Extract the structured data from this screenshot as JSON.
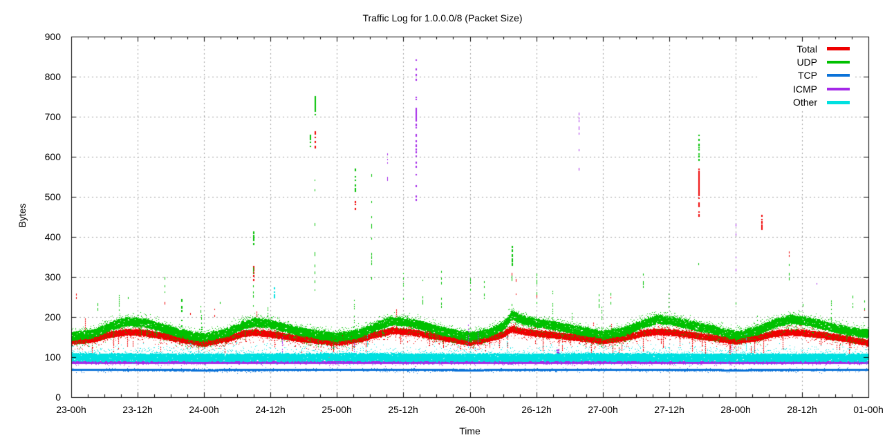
{
  "chart_data": {
    "type": "scatter",
    "title": "Traffic Log for 1.0.0.0/8 (Packet Size)",
    "xlabel": "Time",
    "ylabel": "Bytes",
    "ylim": [
      0,
      900
    ],
    "y_ticks": [
      0,
      100,
      200,
      300,
      400,
      500,
      600,
      700,
      800,
      900
    ],
    "x_tick_labels": [
      "23-00h",
      "23-12h",
      "24-00h",
      "24-12h",
      "25-00h",
      "25-12h",
      "26-00h",
      "26-12h",
      "27-00h",
      "27-12h",
      "28-00h",
      "28-12h",
      "01-00h"
    ],
    "x_axis": {
      "span_hours": 144,
      "major_step_hours": 12,
      "minor_step_hours": 3
    },
    "grid": true,
    "grid_color": "#9e9e9e",
    "legend_position": "top-right-inside",
    "series": [
      {
        "name": "Total",
        "key": "total",
        "color": "#ef0000",
        "legend_lw": 5,
        "band": {
          "t": [
            0,
            4,
            7,
            10,
            13,
            16,
            19,
            22,
            24,
            28,
            31,
            33,
            36,
            38,
            41,
            45,
            48,
            52,
            55,
            58,
            61,
            64,
            67,
            70,
            72,
            75,
            78,
            79.5,
            81,
            84,
            87,
            90,
            93,
            96,
            100,
            103,
            106,
            109,
            112,
            115,
            118,
            120,
            124,
            127,
            130,
            133,
            136,
            139,
            142,
            144
          ],
          "v": [
            140,
            146,
            158,
            164,
            162,
            155,
            147,
            140,
            136,
            146,
            160,
            163,
            158,
            154,
            148,
            141,
            138,
            146,
            158,
            167,
            164,
            157,
            150,
            142,
            137,
            146,
            158,
            172,
            166,
            160,
            156,
            152,
            147,
            142,
            150,
            160,
            165,
            162,
            156,
            151,
            145,
            141,
            150,
            160,
            163,
            160,
            155,
            149,
            142,
            136
          ]
        },
        "noise": {
          "dot": 2,
          "core_n": 10,
          "core_half": 7,
          "solid": 0,
          "tail_up": {
            "p": 0.45,
            "range": 16,
            "n": 2
          },
          "tail_down": {
            "p": 0.5,
            "range": 20,
            "n": 2
          },
          "dangle": {
            "p": 0.05,
            "min": 15,
            "max": 45
          },
          "upcol": {
            "p": 0.012,
            "max": 60
          }
        }
      },
      {
        "name": "UDP",
        "key": "udp",
        "color": "#00c000",
        "legend_lw": 4,
        "band": {
          "t": [
            0,
            4,
            7,
            10,
            13,
            16,
            19,
            22,
            24,
            28,
            31,
            33,
            36,
            38,
            41,
            45,
            48,
            52,
            55,
            58,
            61,
            64,
            67,
            70,
            72,
            75,
            78,
            79.5,
            81,
            84,
            87,
            90,
            93,
            96,
            100,
            103,
            106,
            109,
            112,
            115,
            118,
            120,
            124,
            127,
            130,
            133,
            136,
            139,
            142,
            144
          ],
          "v": [
            153,
            160,
            178,
            190,
            188,
            176,
            163,
            153,
            150,
            162,
            182,
            188,
            184,
            176,
            166,
            156,
            151,
            160,
            178,
            192,
            188,
            177,
            166,
            157,
            153,
            160,
            178,
            207,
            196,
            186,
            180,
            172,
            164,
            156,
            166,
            184,
            196,
            190,
            180,
            172,
            162,
            155,
            168,
            186,
            196,
            190,
            180,
            170,
            162,
            160
          ]
        },
        "noise": {
          "dot": 2,
          "core_n": 9,
          "core_half": 10,
          "solid": 0,
          "tail_up": {
            "p": 0.5,
            "range": 16,
            "n": 2
          },
          "tail_down": {
            "p": 0.7,
            "range": 30,
            "n": 2
          },
          "dangle": {
            "p": 0.04,
            "min": 10,
            "max": 30
          },
          "upcol": {
            "p": 0.012,
            "max": 85
          }
        }
      },
      {
        "name": "TCP",
        "key": "tcp",
        "color": "#0b72d8",
        "legend_lw": 4,
        "band": {
          "t": [
            0,
            24,
            48,
            72,
            96,
            120,
            144
          ],
          "v": [
            69,
            68,
            69,
            68,
            69,
            68,
            69
          ]
        },
        "noise": {
          "dot": 1,
          "core_n": 4,
          "core_half": 2.5,
          "solid": 3,
          "tail_up": {
            "p": 0.1,
            "range": 4,
            "n": 1
          },
          "tail_down": {
            "p": 0.12,
            "range": 7,
            "n": 1
          },
          "dangle": {
            "p": 0.0,
            "min": 0,
            "max": 0
          },
          "upcol": {
            "p": 0.0,
            "max": 0
          }
        }
      },
      {
        "name": "ICMP",
        "key": "icmp",
        "color": "#a428e8",
        "legend_lw": 4,
        "band": {
          "t": [
            0,
            144
          ],
          "v": [
            87,
            87
          ]
        },
        "noise": {
          "dot": 1,
          "core_n": 4,
          "core_half": 3.5,
          "solid": 4,
          "tail_up": {
            "p": 0.2,
            "range": 8,
            "n": 1
          },
          "tail_down": {
            "p": 0.15,
            "range": 7,
            "n": 1
          },
          "dangle": {
            "p": 0.0,
            "min": 0,
            "max": 0
          },
          "upcol": {
            "p": 0.004,
            "max": 120
          }
        }
      },
      {
        "name": "Other",
        "key": "other",
        "color": "#00e0e0",
        "legend_lw": 5,
        "band": {
          "t": [
            0,
            24,
            48,
            72,
            96,
            120,
            144
          ],
          "v": [
            101,
            100,
            101,
            100,
            101,
            100,
            100
          ]
        },
        "noise": {
          "dot": 2,
          "core_n": 11,
          "core_half": 9,
          "solid": 0,
          "tail_up": {
            "p": 0.5,
            "range": 28,
            "n": 2
          },
          "tail_down": {
            "p": 0.3,
            "range": 12,
            "n": 1
          },
          "dangle": {
            "p": 0.0,
            "min": 0,
            "max": 0
          },
          "upcol": {
            "p": 0.005,
            "max": 55
          }
        }
      }
    ],
    "spikes": [
      {
        "s": "total",
        "t": 0.9,
        "lo": 250,
        "hi": 262,
        "d": 0.6,
        "w": 1
      },
      {
        "s": "total",
        "t": 16.9,
        "lo": 224,
        "hi": 250,
        "d": 0.7,
        "w": 1
      },
      {
        "s": "total",
        "t": 21.5,
        "lo": 195,
        "hi": 230,
        "d": 0.5,
        "w": 1
      },
      {
        "s": "total",
        "t": 25.9,
        "lo": 205,
        "hi": 240,
        "d": 0.6,
        "w": 1
      },
      {
        "s": "total",
        "t": 32.8,
        "lo": 295,
        "hi": 340,
        "d": 0.7,
        "w": 2
      },
      {
        "s": "total",
        "t": 44.0,
        "lo": 628,
        "hi": 668,
        "d": 0.8,
        "w": 2
      },
      {
        "s": "total",
        "t": 51.2,
        "lo": 473,
        "hi": 512,
        "d": 0.8,
        "w": 2
      },
      {
        "s": "total",
        "t": 79.6,
        "lo": 298,
        "hi": 312,
        "d": 0.6,
        "w": 1
      },
      {
        "s": "total",
        "t": 80.3,
        "lo": 258,
        "hi": 300,
        "d": 0.5,
        "w": 1
      },
      {
        "s": "total",
        "t": 84.0,
        "lo": 228,
        "hi": 262,
        "d": 0.5,
        "w": 1
      },
      {
        "s": "total",
        "t": 97.4,
        "lo": 228,
        "hi": 256,
        "d": 0.5,
        "w": 1
      },
      {
        "s": "total",
        "t": 113.3,
        "lo": 448,
        "hi": 575,
        "d": 0.55,
        "w": 2,
        "solid": [
          505,
          557
        ]
      },
      {
        "s": "total",
        "t": 124.6,
        "lo": 425,
        "hi": 465,
        "d": 0.7,
        "w": 2
      },
      {
        "s": "total",
        "t": 129.6,
        "lo": 338,
        "hi": 366,
        "d": 0.5,
        "w": 1
      },
      {
        "s": "total",
        "t": 143.3,
        "lo": 222,
        "hi": 250,
        "d": 0.5,
        "w": 1
      },
      {
        "s": "udp",
        "t": 4.75,
        "lo": 222,
        "hi": 240,
        "d": 0.5,
        "w": 1
      },
      {
        "s": "udp",
        "t": 10.2,
        "lo": 240,
        "hi": 265,
        "d": 0.5,
        "w": 1
      },
      {
        "s": "udp",
        "t": 16.9,
        "lo": 253,
        "hi": 302,
        "d": 0.6,
        "w": 1
      },
      {
        "s": "udp",
        "t": 19.9,
        "lo": 180,
        "hi": 246,
        "d": 0.6,
        "w": 2
      },
      {
        "s": "udp",
        "t": 23.4,
        "lo": 217,
        "hi": 234,
        "d": 0.6,
        "w": 1
      },
      {
        "s": "udp",
        "t": 26.8,
        "lo": 228,
        "hi": 262,
        "d": 0.5,
        "w": 1
      },
      {
        "s": "udp",
        "t": 32.8,
        "lo": 230,
        "hi": 330,
        "d": 0.4,
        "w": 1
      },
      {
        "s": "udp",
        "t": 32.8,
        "lo": 385,
        "hi": 425,
        "d": 0.8,
        "w": 2
      },
      {
        "s": "udp",
        "t": 43.1,
        "lo": 618,
        "hi": 660,
        "d": 0.7,
        "w": 2
      },
      {
        "s": "udp",
        "t": 44.0,
        "lo": 250,
        "hi": 560,
        "d": 0.25,
        "w": 1
      },
      {
        "s": "udp",
        "t": 44.0,
        "lo": 700,
        "hi": 755,
        "d": 0.8,
        "w": 2,
        "solid": [
          715,
          750
        ]
      },
      {
        "s": "udp",
        "t": 51.2,
        "lo": 518,
        "hi": 580,
        "d": 0.75,
        "w": 2
      },
      {
        "s": "udp",
        "t": 54.2,
        "lo": 300,
        "hi": 578,
        "d": 0.3,
        "w": 1
      },
      {
        "s": "udp",
        "t": 60.0,
        "lo": 248,
        "hi": 320,
        "d": 0.5,
        "w": 1
      },
      {
        "s": "udp",
        "t": 63.4,
        "lo": 238,
        "hi": 300,
        "d": 0.45,
        "w": 1
      },
      {
        "s": "udp",
        "t": 66.8,
        "lo": 228,
        "hi": 330,
        "d": 0.4,
        "w": 1
      },
      {
        "s": "udp",
        "t": 72.1,
        "lo": 230,
        "hi": 300,
        "d": 0.4,
        "w": 1
      },
      {
        "s": "udp",
        "t": 74.6,
        "lo": 248,
        "hi": 310,
        "d": 0.45,
        "w": 1
      },
      {
        "s": "udp",
        "t": 79.6,
        "lo": 334,
        "hi": 378,
        "d": 0.8,
        "w": 2
      },
      {
        "s": "udp",
        "t": 79.6,
        "lo": 215,
        "hi": 320,
        "d": 0.3,
        "w": 1
      },
      {
        "s": "udp",
        "t": 84.0,
        "lo": 238,
        "hi": 310,
        "d": 0.45,
        "w": 1
      },
      {
        "s": "udp",
        "t": 95.3,
        "lo": 228,
        "hi": 262,
        "d": 0.5,
        "w": 1
      },
      {
        "s": "udp",
        "t": 97.4,
        "lo": 238,
        "hi": 266,
        "d": 0.5,
        "w": 1
      },
      {
        "s": "udp",
        "t": 103.3,
        "lo": 278,
        "hi": 312,
        "d": 0.5,
        "w": 1
      },
      {
        "s": "udp",
        "t": 107.9,
        "lo": 228,
        "hi": 262,
        "d": 0.5,
        "w": 1
      },
      {
        "s": "udp",
        "t": 113.3,
        "lo": 595,
        "hi": 662,
        "d": 0.8,
        "w": 2
      },
      {
        "s": "udp",
        "t": 113.3,
        "lo": 335,
        "hi": 345,
        "d": 0.5,
        "w": 1
      },
      {
        "s": "udp",
        "t": 116.8,
        "lo": 228,
        "hi": 262,
        "d": 0.4,
        "w": 1
      },
      {
        "s": "udp",
        "t": 120.0,
        "lo": 228,
        "hi": 282,
        "d": 0.4,
        "w": 1
      },
      {
        "s": "udp",
        "t": 129.6,
        "lo": 298,
        "hi": 338,
        "d": 0.5,
        "w": 1
      },
      {
        "s": "udp",
        "t": 132.1,
        "lo": 228,
        "hi": 266,
        "d": 0.4,
        "w": 1
      },
      {
        "s": "udp",
        "t": 141.1,
        "lo": 228,
        "hi": 262,
        "d": 0.4,
        "w": 1
      },
      {
        "s": "udp",
        "t": 143.3,
        "lo": 222,
        "hi": 262,
        "d": 0.5,
        "w": 1
      },
      {
        "s": "icmp",
        "t": 57.1,
        "lo": 528,
        "hi": 610,
        "d": 0.35,
        "w": 1
      },
      {
        "s": "icmp",
        "t": 62.2,
        "lo": 495,
        "hi": 845,
        "d": 0.5,
        "w": 2,
        "solid": [
          688,
          722
        ]
      },
      {
        "s": "icmp",
        "t": 87.7,
        "lo": 96,
        "hi": 126,
        "d": 0.9,
        "w": 4
      },
      {
        "s": "icmp",
        "t": 91.7,
        "lo": 558,
        "hi": 712,
        "d": 0.3,
        "w": 1
      },
      {
        "s": "icmp",
        "t": 120.0,
        "lo": 315,
        "hi": 440,
        "d": 0.25,
        "w": 1
      },
      {
        "s": "icmp",
        "t": 134.6,
        "lo": 285,
        "hi": 312,
        "d": 0.4,
        "w": 1
      },
      {
        "s": "other",
        "t": 29.8,
        "lo": 115,
        "hi": 142,
        "d": 0.6,
        "w": 1
      },
      {
        "s": "other",
        "t": 36.6,
        "lo": 252,
        "hi": 280,
        "d": 0.7,
        "w": 2
      },
      {
        "s": "other",
        "t": 77.0,
        "lo": 148,
        "hi": 165,
        "d": 0.5,
        "w": 1
      }
    ]
  }
}
